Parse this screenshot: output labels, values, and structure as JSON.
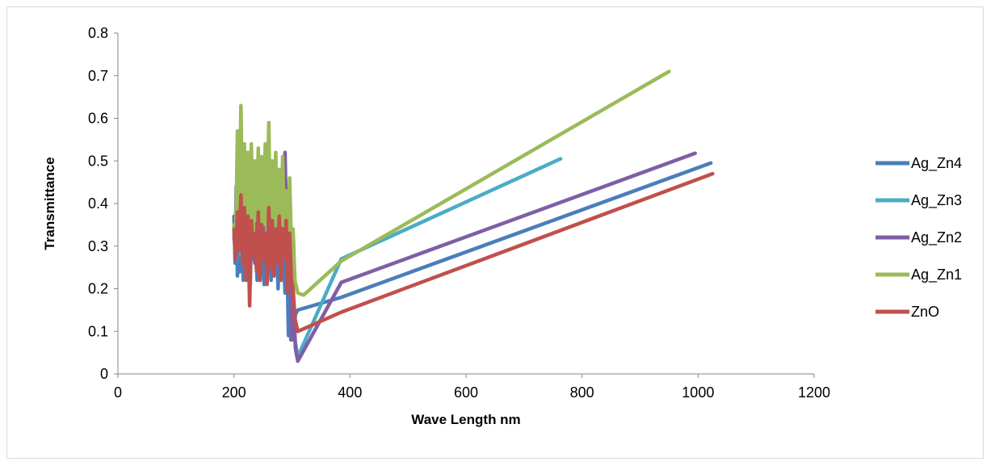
{
  "chart_data": {
    "type": "line",
    "title": "",
    "xlabel": "Wave Length nm",
    "ylabel": "Transmittance",
    "xlim": [
      0,
      1200
    ],
    "ylim": [
      0,
      0.8
    ],
    "xticks": [
      "0",
      "200",
      "400",
      "600",
      "800",
      "1000",
      "1200"
    ],
    "yticks": [
      "0",
      "0.1",
      "0.2",
      "0.3",
      "0.4",
      "0.5",
      "0.6",
      "0.7",
      "0.8"
    ],
    "grid": false,
    "legend_position": "right",
    "series": [
      {
        "name": "Ag_Zn4",
        "color": "#4a7ebb",
        "x": [
          200,
          202,
          204,
          206,
          208,
          210,
          213,
          216,
          219,
          222,
          225,
          228,
          231,
          234,
          237,
          240,
          243,
          246,
          249,
          252,
          255,
          258,
          261,
          264,
          267,
          270,
          273,
          276,
          279,
          282,
          285,
          288,
          291,
          294,
          296,
          298,
          300,
          303,
          306,
          310,
          385,
          1022
        ],
        "y": [
          0.37,
          0.26,
          0.44,
          0.23,
          0.4,
          0.24,
          0.38,
          0.22,
          0.41,
          0.25,
          0.36,
          0.21,
          0.39,
          0.27,
          0.35,
          0.22,
          0.4,
          0.24,
          0.37,
          0.21,
          0.38,
          0.26,
          0.34,
          0.22,
          0.36,
          0.24,
          0.33,
          0.2,
          0.35,
          0.23,
          0.31,
          0.19,
          0.3,
          0.09,
          0.24,
          0.08,
          0.17,
          0.1,
          0.14,
          0.15,
          0.18,
          0.495
        ]
      },
      {
        "name": "Ag_Zn3",
        "color": "#4bacc6",
        "x": [
          200,
          204,
          208,
          212,
          216,
          220,
          224,
          228,
          232,
          236,
          240,
          244,
          248,
          252,
          256,
          260,
          264,
          268,
          272,
          276,
          280,
          284,
          288,
          292,
          296,
          300,
          305,
          310,
          385,
          763
        ],
        "y": [
          0.33,
          0.27,
          0.42,
          0.28,
          0.45,
          0.29,
          0.4,
          0.31,
          0.44,
          0.28,
          0.41,
          0.3,
          0.46,
          0.32,
          0.43,
          0.29,
          0.42,
          0.31,
          0.4,
          0.28,
          0.44,
          0.3,
          0.38,
          0.25,
          0.3,
          0.12,
          0.08,
          0.04,
          0.27,
          0.505
        ]
      },
      {
        "name": "Ag_Zn2",
        "color": "#7f5ea6",
        "x": [
          200,
          204,
          208,
          212,
          216,
          220,
          224,
          228,
          232,
          236,
          240,
          244,
          248,
          252,
          256,
          260,
          264,
          268,
          272,
          276,
          280,
          284,
          288,
          292,
          296,
          300,
          303,
          306,
          310,
          385,
          995
        ],
        "y": [
          0.32,
          0.28,
          0.45,
          0.3,
          0.4,
          0.27,
          0.42,
          0.29,
          0.38,
          0.26,
          0.44,
          0.31,
          0.39,
          0.28,
          0.41,
          0.26,
          0.37,
          0.3,
          0.43,
          0.27,
          0.4,
          0.29,
          0.52,
          0.25,
          0.38,
          0.08,
          0.16,
          0.06,
          0.03,
          0.215,
          0.518
        ]
      },
      {
        "name": "Ag_Zn1",
        "color": "#9bbb59",
        "x": [
          200,
          203,
          206,
          209,
          212,
          215,
          218,
          221,
          224,
          227,
          230,
          233,
          236,
          239,
          242,
          245,
          248,
          251,
          254,
          257,
          260,
          263,
          266,
          269,
          272,
          275,
          278,
          281,
          284,
          287,
          290,
          293,
          296,
          299,
          302,
          305,
          310,
          320,
          385,
          950
        ],
        "y": [
          0.35,
          0.3,
          0.57,
          0.32,
          0.63,
          0.34,
          0.54,
          0.3,
          0.52,
          0.33,
          0.54,
          0.31,
          0.5,
          0.36,
          0.53,
          0.32,
          0.51,
          0.35,
          0.54,
          0.33,
          0.59,
          0.31,
          0.5,
          0.34,
          0.52,
          0.3,
          0.48,
          0.35,
          0.51,
          0.3,
          0.43,
          0.28,
          0.46,
          0.3,
          0.34,
          0.22,
          0.19,
          0.185,
          0.265,
          0.71
        ]
      },
      {
        "name": "ZnO",
        "color": "#c0504d",
        "x": [
          200,
          203,
          206,
          209,
          212,
          215,
          218,
          221,
          224,
          227,
          230,
          233,
          236,
          239,
          242,
          245,
          248,
          251,
          254,
          257,
          260,
          263,
          266,
          269,
          272,
          275,
          278,
          281,
          284,
          287,
          290,
          293,
          296,
          299,
          302,
          305,
          310,
          385,
          1025
        ],
        "y": [
          0.34,
          0.27,
          0.38,
          0.29,
          0.42,
          0.26,
          0.39,
          0.22,
          0.37,
          0.16,
          0.36,
          0.28,
          0.33,
          0.24,
          0.38,
          0.22,
          0.35,
          0.27,
          0.33,
          0.21,
          0.39,
          0.25,
          0.36,
          0.23,
          0.34,
          0.26,
          0.37,
          0.22,
          0.34,
          0.27,
          0.36,
          0.19,
          0.33,
          0.22,
          0.2,
          0.13,
          0.1,
          0.145,
          0.47
        ]
      }
    ]
  }
}
